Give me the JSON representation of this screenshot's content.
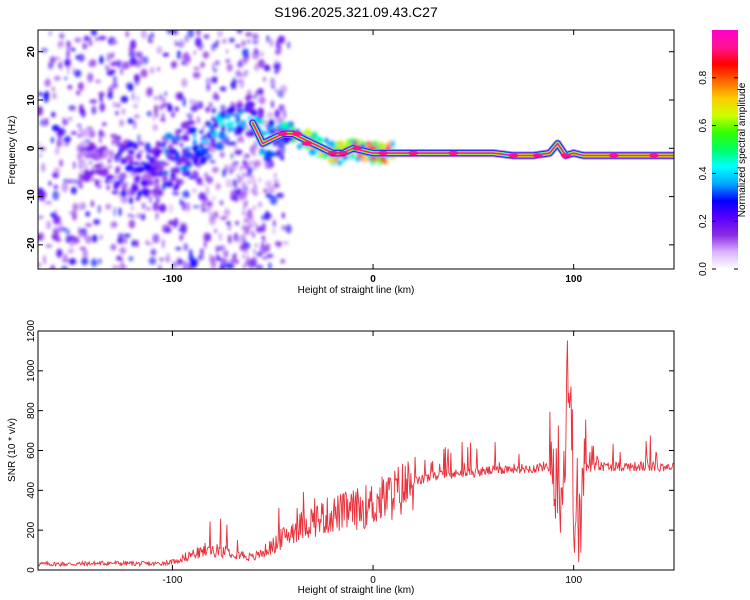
{
  "figure": {
    "title": "S196.2025.321.09.43.C27"
  },
  "chart_data": [
    {
      "type": "heatmap",
      "title": "",
      "xlabel": "Height of straight line (km)",
      "ylabel": "Frequency (Hz)",
      "xlim": [
        -167,
        150
      ],
      "ylim": [
        -25,
        24.5
      ],
      "xticks": [
        -100,
        0,
        100
      ],
      "yticks": [
        -20,
        -10,
        0,
        10,
        20
      ],
      "colorbar": {
        "label": "Normalized spectral amplitude",
        "range": [
          0,
          1
        ],
        "ticks": [
          0,
          0.2,
          0.4,
          0.6,
          0.8
        ],
        "tick_labels": [
          "0.0",
          "0.2",
          "0.4",
          "0.6",
          "0.8"
        ],
        "colormap": [
          "#ffffff",
          "#d9b3ff",
          "#8a2be2",
          "#5a00ff",
          "#0000ff",
          "#00aaff",
          "#00ffff",
          "#00ff66",
          "#33ff00",
          "#ccff00",
          "#ffcc00",
          "#ff6600",
          "#ff0000",
          "#ff1493",
          "#ff00cc"
        ]
      },
      "ridge": {
        "x": [
          -167,
          -150,
          -130,
          -120,
          -110,
          -100,
          -90,
          -80,
          -70,
          -62,
          -55,
          -45,
          -40,
          -30,
          -20,
          -15,
          -10,
          0,
          20,
          40,
          60,
          70,
          80,
          88,
          92,
          96,
          100,
          105,
          120,
          140,
          150
        ],
        "y": [
          1,
          -1,
          -3,
          -5,
          -4,
          -3,
          0,
          2,
          5,
          7,
          1,
          3,
          3,
          1,
          -1,
          -1,
          0,
          -1,
          -1,
          -1,
          -1,
          -1.5,
          -1.5,
          -1,
          1,
          -1.5,
          -1,
          -1.5,
          -1.5,
          -1.5,
          -1.5
        ],
        "amplitude": [
          0.1,
          0.15,
          0.25,
          0.3,
          0.3,
          0.35,
          0.4,
          0.45,
          0.45,
          0.4,
          0.55,
          0.5,
          0.6,
          0.7,
          0.8,
          0.85,
          0.8,
          0.95,
          0.95,
          0.7,
          0.6,
          0.7,
          0.75,
          0.7,
          0.6,
          0.85,
          0.9,
          0.95,
          0.95,
          0.95,
          0.95
        ]
      }
    },
    {
      "type": "line",
      "title": "",
      "xlabel": "Height of straight line (km)",
      "ylabel": "SNR (10 * v/v)",
      "xlim": [
        -167,
        150
      ],
      "ylim": [
        0,
        1200
      ],
      "xticks": [
        -100,
        0,
        100
      ],
      "yticks": [
        0,
        200,
        400,
        600,
        800,
        1000,
        1200
      ],
      "color": "#e8323c",
      "series": [
        {
          "x": [
            -167,
            -150,
            -130,
            -110,
            -100,
            -90,
            -80,
            -70,
            -60,
            -50,
            -40,
            -30,
            -20,
            -10,
            0,
            10,
            20,
            30,
            40,
            50,
            60,
            70,
            80,
            85,
            90,
            95,
            97,
            100,
            103,
            105,
            110,
            120,
            130,
            140,
            150
          ],
          "y": [
            30,
            30,
            35,
            30,
            40,
            80,
            100,
            90,
            60,
            120,
            200,
            250,
            280,
            300,
            330,
            380,
            440,
            470,
            480,
            490,
            500,
            510,
            510,
            520,
            520,
            450,
            1100,
            400,
            200,
            500,
            520,
            520,
            520,
            520,
            520
          ]
        }
      ]
    }
  ]
}
